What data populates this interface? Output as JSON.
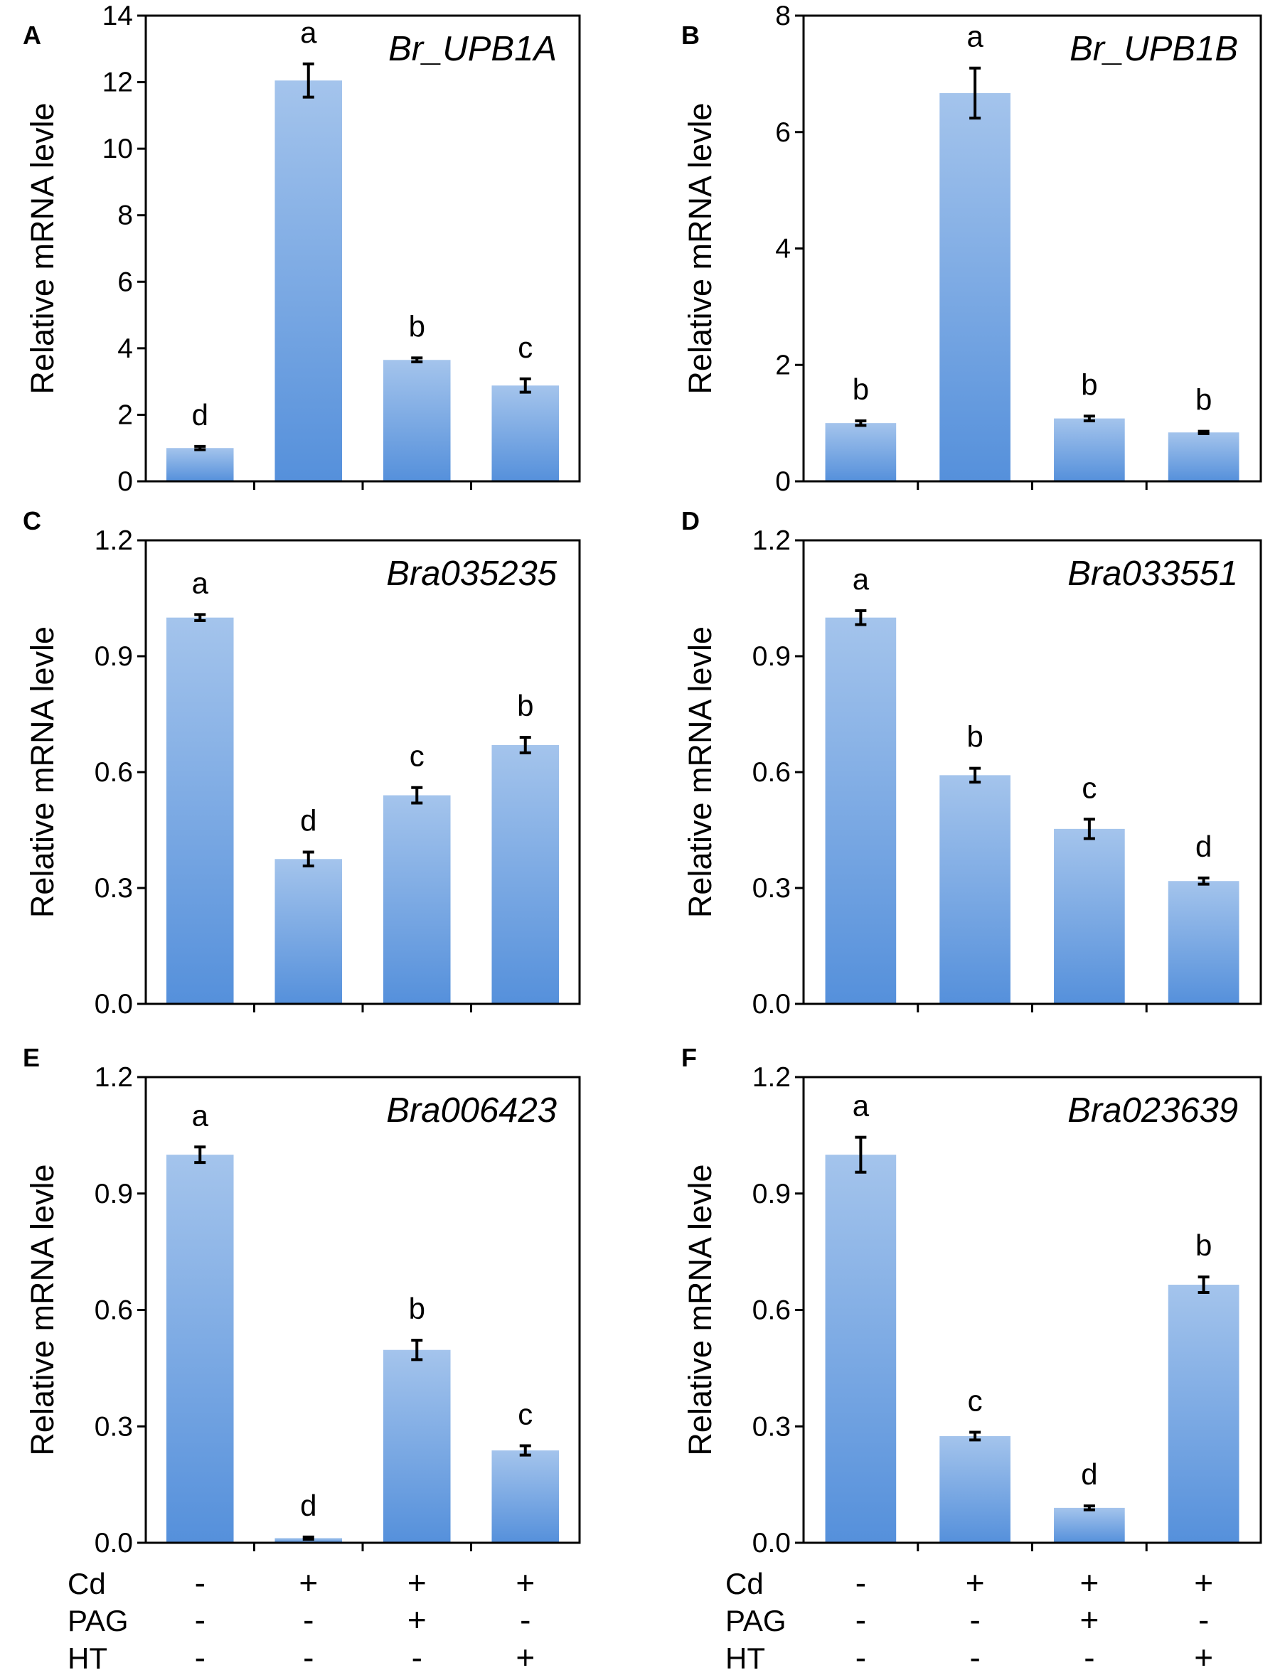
{
  "colors": {
    "bar_top": "#a4c4ec",
    "bar_bottom": "#5590db",
    "axis": "#000000",
    "error_bar": "#000000"
  },
  "chart_data": [
    {
      "panel": "A",
      "type": "bar",
      "title": "Br_UPB1A",
      "ylabel": "Relative mRNA levle",
      "ylim": [
        0,
        14
      ],
      "yticks": [
        "0",
        "2",
        "4",
        "6",
        "8",
        "10",
        "12",
        "14"
      ],
      "ytick_values": [
        0,
        2,
        4,
        6,
        8,
        10,
        12,
        14
      ],
      "values": [
        1.0,
        12.05,
        3.65,
        2.88
      ],
      "errors": [
        0.05,
        0.5,
        0.06,
        0.2
      ],
      "sig_letters": [
        "d",
        "a",
        "b",
        "c"
      ]
    },
    {
      "panel": "B",
      "type": "bar",
      "title": "Br_UPB1B",
      "ylabel": "Relative mRNA levle",
      "ylim": [
        0,
        8
      ],
      "yticks": [
        "0",
        "2",
        "4",
        "6",
        "8"
      ],
      "ytick_values": [
        0,
        2,
        4,
        6,
        8
      ],
      "values": [
        1.0,
        6.67,
        1.08,
        0.84
      ],
      "errors": [
        0.04,
        0.43,
        0.04,
        0.02
      ],
      "sig_letters": [
        "b",
        "a",
        "b",
        "b"
      ]
    },
    {
      "panel": "C",
      "type": "bar",
      "title": "Bra035235",
      "ylabel": "Relative mRNA levle",
      "ylim": [
        0,
        1.2
      ],
      "yticks": [
        "0.0",
        "0.3",
        "0.6",
        "0.9",
        "1.2"
      ],
      "ytick_values": [
        0,
        0.3,
        0.6,
        0.9,
        1.2
      ],
      "values": [
        1.0,
        0.375,
        0.54,
        0.67
      ],
      "errors": [
        0.008,
        0.018,
        0.02,
        0.02
      ],
      "sig_letters": [
        "a",
        "d",
        "c",
        "b"
      ]
    },
    {
      "panel": "D",
      "type": "bar",
      "title": "Bra033551",
      "ylabel": "Relative mRNA levle",
      "ylim": [
        0,
        1.2
      ],
      "yticks": [
        "0.0",
        "0.3",
        "0.6",
        "0.9",
        "1.2"
      ],
      "ytick_values": [
        0,
        0.3,
        0.6,
        0.9,
        1.2
      ],
      "values": [
        1.0,
        0.592,
        0.453,
        0.318
      ],
      "errors": [
        0.018,
        0.018,
        0.025,
        0.008
      ],
      "sig_letters": [
        "a",
        "b",
        "c",
        "d"
      ]
    },
    {
      "panel": "E",
      "type": "bar",
      "title": "Bra006423",
      "ylabel": "Relative mRNA levle",
      "ylim": [
        0,
        1.2
      ],
      "yticks": [
        "0.0",
        "0.3",
        "0.6",
        "0.9",
        "1.2"
      ],
      "ytick_values": [
        0,
        0.3,
        0.6,
        0.9,
        1.2
      ],
      "values": [
        1.0,
        0.012,
        0.497,
        0.238
      ],
      "errors": [
        0.02,
        0.003,
        0.025,
        0.012
      ],
      "sig_letters": [
        "a",
        "d",
        "b",
        "c"
      ]
    },
    {
      "panel": "F",
      "type": "bar",
      "title": "Bra023639",
      "ylabel": "Relative mRNA levle",
      "ylim": [
        0,
        1.2
      ],
      "yticks": [
        "0.0",
        "0.3",
        "0.6",
        "0.9",
        "1.2"
      ],
      "ytick_values": [
        0,
        0.3,
        0.6,
        0.9,
        1.2
      ],
      "values": [
        1.0,
        0.275,
        0.09,
        0.665
      ],
      "errors": [
        0.045,
        0.01,
        0.005,
        0.02
      ],
      "sig_letters": [
        "a",
        "c",
        "d",
        "b"
      ]
    }
  ],
  "treatments": [
    {
      "label": "Cd",
      "signs": [
        "-",
        "+",
        "+",
        "+"
      ]
    },
    {
      "label": "PAG",
      "signs": [
        "-",
        "-",
        "+",
        "-"
      ]
    },
    {
      "label": "HT",
      "signs": [
        "-",
        "-",
        "-",
        "+"
      ]
    }
  ]
}
